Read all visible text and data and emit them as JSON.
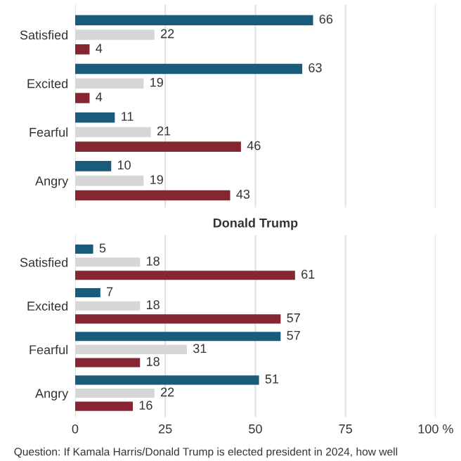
{
  "chart_data": [
    {
      "type": "bar",
      "orientation": "horizontal",
      "categories": [
        "Satisfied",
        "Excited",
        "Fearful",
        "Angry"
      ],
      "series": [
        {
          "color": "#1a5a7a",
          "values": [
            66,
            63,
            11,
            10
          ]
        },
        {
          "color": "#d6d6d6",
          "values": [
            22,
            19,
            21,
            19
          ]
        },
        {
          "color": "#862633",
          "values": [
            4,
            4,
            46,
            43
          ]
        }
      ],
      "xlim": [
        0,
        100
      ],
      "xticks": [
        0,
        25,
        50,
        75,
        100
      ],
      "grid": "x",
      "legend": false,
      "data_labels": true,
      "tick_labels": "y"
    },
    {
      "type": "bar",
      "orientation": "horizontal",
      "title": "Donald Trump",
      "categories": [
        "Satisfied",
        "Excited",
        "Fearful",
        "Angry"
      ],
      "series": [
        {
          "color": "#1a5a7a",
          "values": [
            5,
            7,
            57,
            51
          ]
        },
        {
          "color": "#d6d6d6",
          "values": [
            18,
            18,
            31,
            22
          ]
        },
        {
          "color": "#862633",
          "values": [
            61,
            57,
            18,
            16
          ]
        }
      ],
      "xlim": [
        0,
        100
      ],
      "xticks": [
        0,
        25,
        50,
        75,
        {
          "value": 100,
          "label": "100 %"
        }
      ],
      "grid": "x",
      "legend": false,
      "data_labels": true,
      "annotations": [
        "Question: If Kamala Harris/Donald Trump is elected president in 2024, how well"
      ]
    }
  ]
}
